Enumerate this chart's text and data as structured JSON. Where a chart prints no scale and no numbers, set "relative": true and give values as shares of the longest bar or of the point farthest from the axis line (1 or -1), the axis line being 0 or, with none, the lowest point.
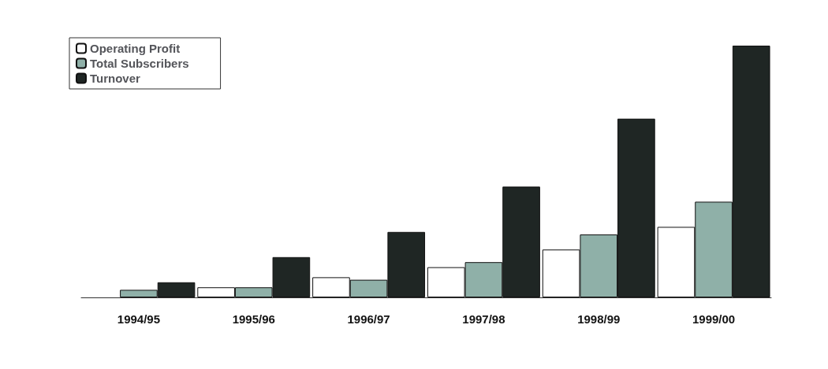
{
  "chart_data": {
    "type": "bar",
    "relative": true,
    "legend": "top left",
    "grid": false,
    "categories": [
      "1994/95",
      "1995/96",
      "1996/97",
      "1997/98",
      "1998/99",
      "1999/00"
    ],
    "series": [
      {
        "name": "Operating Profit",
        "color": "#ffffff",
        "values": [
          null,
          0.04,
          0.08,
          0.12,
          0.19,
          0.28
        ]
      },
      {
        "name": "Total Subscribers",
        "color": "#8fb0a8",
        "values": [
          0.03,
          0.04,
          0.07,
          0.14,
          0.25,
          0.38
        ]
      },
      {
        "name": "Turnover",
        "color": "#1f2624",
        "values": [
          0.06,
          0.16,
          0.26,
          0.44,
          0.71,
          1
        ]
      }
    ]
  }
}
